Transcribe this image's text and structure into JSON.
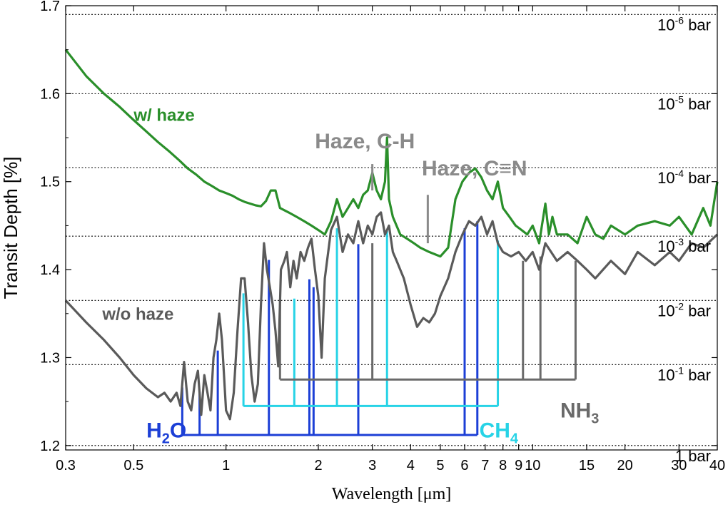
{
  "chart_data": {
    "type": "line",
    "xlabel": "Wavelength [μm]",
    "ylabel": "Transit Depth [%]",
    "xscale": "log",
    "xlim": [
      0.3,
      40
    ],
    "ylim": [
      1.195,
      1.7
    ],
    "x_ticks": [
      0.3,
      0.5,
      1,
      2,
      3,
      4,
      5,
      6,
      7,
      8,
      9,
      10,
      15,
      20,
      30,
      40
    ],
    "x_tick_labels": [
      "0.3",
      "0.5",
      "1",
      "2",
      "3",
      "4",
      "5",
      "6",
      "7",
      "8",
      "9",
      "10",
      "15",
      "20",
      "30",
      "40"
    ],
    "y_ticks": [
      1.2,
      1.3,
      1.4,
      1.5,
      1.6,
      1.7
    ],
    "y_tick_labels": [
      "1.2",
      "1.3",
      "1.4",
      "1.5",
      "1.6",
      "1.7"
    ],
    "pressure_levels": [
      {
        "y": 1.69,
        "label": "10",
        "exp": "-6",
        "unit": " bar"
      },
      {
        "y": 1.6,
        "label": "10",
        "exp": "-5",
        "unit": " bar"
      },
      {
        "y": 1.516,
        "label": "10",
        "exp": "-4",
        "unit": " bar"
      },
      {
        "y": 1.438,
        "label": "10",
        "exp": "-3",
        "unit": " bar"
      },
      {
        "y": 1.365,
        "label": "10",
        "exp": "-2",
        "unit": " bar"
      },
      {
        "y": 1.292,
        "label": "10",
        "exp": "-1",
        "unit": " bar"
      },
      {
        "y": 1.2,
        "label": "1 bar",
        "exp": "",
        "unit": ""
      }
    ],
    "series": [
      {
        "name": "w/ haze",
        "color": "#2a8f2a",
        "x": [
          0.3,
          0.35,
          0.4,
          0.45,
          0.5,
          0.55,
          0.6,
          0.65,
          0.7,
          0.75,
          0.8,
          0.85,
          0.9,
          0.95,
          1.0,
          1.05,
          1.1,
          1.15,
          1.2,
          1.25,
          1.3,
          1.35,
          1.4,
          1.45,
          1.5,
          1.6,
          1.7,
          1.8,
          1.9,
          2.0,
          2.1,
          2.2,
          2.3,
          2.4,
          2.5,
          2.6,
          2.7,
          2.8,
          2.9,
          3.0,
          3.1,
          3.2,
          3.3,
          3.35,
          3.4,
          3.5,
          3.7,
          3.9,
          4.1,
          4.3,
          4.6,
          5.0,
          5.3,
          5.6,
          5.9,
          6.2,
          6.5,
          6.8,
          7.1,
          7.4,
          7.7,
          8.0,
          8.4,
          8.8,
          9.2,
          9.6,
          10.0,
          10.5,
          11.0,
          11.3,
          11.6,
          12.0,
          13.0,
          14.0,
          15.0,
          16.0,
          17.0,
          18.0,
          20.0,
          22.0,
          25.0,
          28.0,
          30.0,
          33.0,
          36.0,
          38.0,
          40.0
        ],
        "y": [
          1.65,
          1.62,
          1.6,
          1.585,
          1.57,
          1.557,
          1.545,
          1.535,
          1.525,
          1.515,
          1.508,
          1.5,
          1.495,
          1.49,
          1.487,
          1.484,
          1.48,
          1.477,
          1.475,
          1.473,
          1.472,
          1.478,
          1.49,
          1.49,
          1.47,
          1.465,
          1.46,
          1.455,
          1.45,
          1.445,
          1.44,
          1.455,
          1.48,
          1.46,
          1.47,
          1.48,
          1.47,
          1.485,
          1.49,
          1.51,
          1.49,
          1.48,
          1.5,
          1.55,
          1.48,
          1.46,
          1.44,
          1.435,
          1.43,
          1.425,
          1.42,
          1.415,
          1.425,
          1.48,
          1.5,
          1.51,
          1.515,
          1.505,
          1.49,
          1.48,
          1.5,
          1.47,
          1.46,
          1.45,
          1.445,
          1.44,
          1.45,
          1.43,
          1.475,
          1.44,
          1.46,
          1.44,
          1.44,
          1.43,
          1.46,
          1.44,
          1.435,
          1.45,
          1.44,
          1.45,
          1.455,
          1.45,
          1.46,
          1.44,
          1.47,
          1.45,
          1.5
        ]
      },
      {
        "name": "w/o haze",
        "color": "#5a5a5a",
        "x": [
          0.3,
          0.35,
          0.4,
          0.45,
          0.5,
          0.55,
          0.6,
          0.63,
          0.66,
          0.69,
          0.71,
          0.73,
          0.75,
          0.77,
          0.79,
          0.81,
          0.83,
          0.85,
          0.87,
          0.89,
          0.91,
          0.93,
          0.95,
          0.97,
          1.0,
          1.03,
          1.06,
          1.09,
          1.12,
          1.15,
          1.18,
          1.21,
          1.24,
          1.27,
          1.3,
          1.33,
          1.36,
          1.39,
          1.42,
          1.45,
          1.48,
          1.51,
          1.55,
          1.58,
          1.62,
          1.66,
          1.7,
          1.75,
          1.8,
          1.85,
          1.9,
          1.95,
          2.0,
          2.05,
          2.1,
          2.2,
          2.3,
          2.4,
          2.5,
          2.6,
          2.7,
          2.8,
          2.9,
          3.0,
          3.1,
          3.2,
          3.3,
          3.4,
          3.5,
          3.6,
          3.8,
          4.0,
          4.2,
          4.4,
          4.6,
          4.8,
          5.0,
          5.3,
          5.6,
          5.9,
          6.2,
          6.5,
          6.8,
          7.1,
          7.4,
          7.7,
          8.0,
          8.5,
          9.0,
          9.5,
          10.0,
          10.5,
          11.0,
          12.0,
          13.0,
          14.0,
          15.0,
          16.0,
          18.0,
          20.0,
          22.0,
          25.0,
          28.0,
          30.0,
          33.0,
          36.0,
          40.0
        ],
        "y": [
          1.365,
          1.34,
          1.32,
          1.3,
          1.28,
          1.265,
          1.255,
          1.26,
          1.25,
          1.26,
          1.245,
          1.295,
          1.25,
          1.24,
          1.27,
          1.285,
          1.235,
          1.28,
          1.26,
          1.24,
          1.3,
          1.32,
          1.35,
          1.32,
          1.24,
          1.23,
          1.26,
          1.33,
          1.39,
          1.39,
          1.34,
          1.28,
          1.25,
          1.27,
          1.36,
          1.43,
          1.4,
          1.38,
          1.36,
          1.33,
          1.29,
          1.4,
          1.41,
          1.42,
          1.38,
          1.41,
          1.39,
          1.42,
          1.41,
          1.425,
          1.435,
          1.4,
          1.37,
          1.3,
          1.39,
          1.445,
          1.46,
          1.42,
          1.44,
          1.43,
          1.455,
          1.43,
          1.45,
          1.44,
          1.46,
          1.465,
          1.44,
          1.45,
          1.42,
          1.41,
          1.39,
          1.36,
          1.335,
          1.345,
          1.34,
          1.35,
          1.37,
          1.39,
          1.42,
          1.44,
          1.455,
          1.45,
          1.46,
          1.44,
          1.455,
          1.43,
          1.42,
          1.415,
          1.42,
          1.41,
          1.42,
          1.4,
          1.43,
          1.41,
          1.42,
          1.41,
          1.4,
          1.39,
          1.41,
          1.395,
          1.42,
          1.405,
          1.42,
          1.41,
          1.43,
          1.425,
          1.44
        ]
      }
    ],
    "features": [
      {
        "name": "H2O",
        "label": "H",
        "sub": "2",
        "tail": "O",
        "color": "#1c3fd6",
        "base_y": 1.212,
        "x_start": 0.72,
        "x_end": 6.6,
        "lines": [
          {
            "x": 0.72,
            "top": 1.266
          },
          {
            "x": 0.82,
            "top": 1.261
          },
          {
            "x": 0.94,
            "top": 1.308
          },
          {
            "x": 1.38,
            "top": 1.411
          },
          {
            "x": 1.87,
            "top": 1.389
          },
          {
            "x": 1.93,
            "top": 1.38
          },
          {
            "x": 2.7,
            "top": 1.429
          },
          {
            "x": 6.0,
            "top": 1.447
          },
          {
            "x": 6.6,
            "top": 1.455
          }
        ]
      },
      {
        "name": "CH4",
        "label": "CH",
        "sub": "4",
        "tail": "",
        "color": "#27d3e6",
        "base_y": 1.245,
        "x_start": 1.14,
        "x_end": 7.7,
        "lines": [
          {
            "x": 1.14,
            "top": 1.373
          },
          {
            "x": 1.67,
            "top": 1.367
          },
          {
            "x": 2.3,
            "top": 1.447
          },
          {
            "x": 3.35,
            "top": 1.444
          },
          {
            "x": 7.7,
            "top": 1.433
          }
        ]
      },
      {
        "name": "NH3",
        "label": "NH",
        "sub": "3",
        "tail": "",
        "color": "#6a6a6a",
        "base_y": 1.275,
        "x_start": 1.5,
        "x_end": 13.8,
        "lines": [
          {
            "x": 1.5,
            "top": 1.365
          },
          {
            "x": 3.0,
            "top": 1.43
          },
          {
            "x": 9.3,
            "top": 1.41
          },
          {
            "x": 10.6,
            "top": 1.415
          },
          {
            "x": 13.8,
            "top": 1.41
          }
        ]
      }
    ],
    "series_labels": [
      {
        "text": "w/ haze",
        "color": "#2a8f2a",
        "x": 0.5,
        "y": 1.569
      },
      {
        "text": "w/o haze",
        "color": "#5a5a5a",
        "x": 0.395,
        "y": 1.343
      }
    ],
    "molecule_labels": [
      {
        "name": "H2O",
        "x": 0.55,
        "y": 1.222
      },
      {
        "name": "CH4",
        "x": 6.7,
        "y": 1.222
      },
      {
        "name": "NH3",
        "x": 12.3,
        "y": 1.245
      }
    ],
    "annotations": [
      {
        "text": "Haze, C-H",
        "color": "#8a8a8a",
        "x": 3.0,
        "y": 1.538,
        "line_top": 1.52,
        "line_bottom": 1.49,
        "text_x": 1.95
      },
      {
        "text": "Haze, C",
        "triple": "≡",
        "text2": "N",
        "color": "#8a8a8a",
        "x": 4.55,
        "y": 1.507,
        "line_top": 1.485,
        "line_bottom": 1.43,
        "text_x": 4.35
      }
    ]
  }
}
